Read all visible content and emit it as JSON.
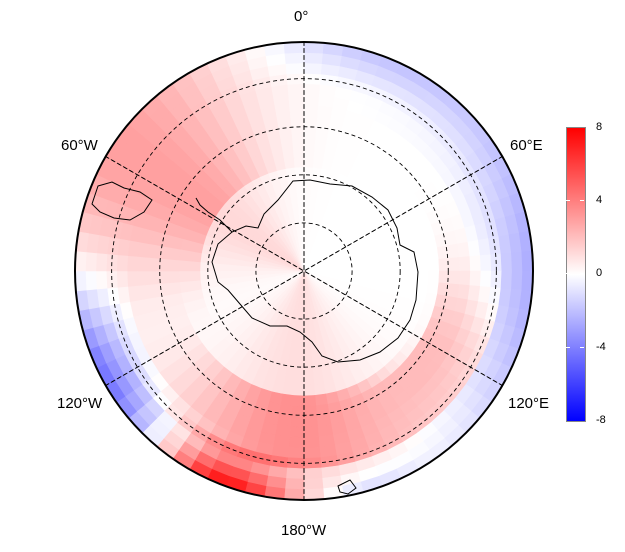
{
  "map": {
    "projection": "south polar stereographic",
    "boundary": "circle",
    "graticule": "dashed",
    "longitude_labels": {
      "top": "0°",
      "upper_left": "60°W",
      "upper_right": "60°E",
      "lower_left": "120°W",
      "lower_right": "120°E",
      "bottom": "180°W"
    }
  },
  "colorbar": {
    "min": -8,
    "max": 8,
    "ticks": [
      "8",
      "4",
      "0",
      "-4",
      "-8"
    ],
    "low_color": "#0000ff",
    "mid_color": "#ffffff",
    "high_color": "#ff0000"
  }
}
